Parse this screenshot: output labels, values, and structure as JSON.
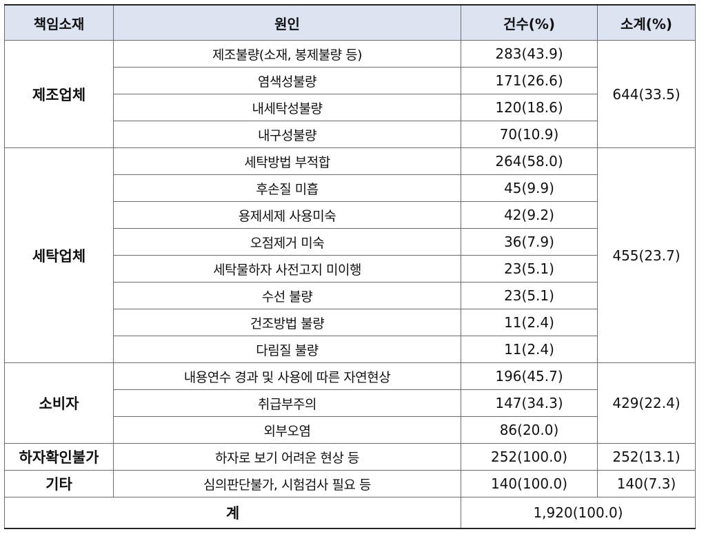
{
  "headers": [
    "책임소재",
    "원인",
    "건수(%)",
    "소계(%)"
  ],
  "groups": [
    {
      "category": "제조업체",
      "subtotal": "644(33.5)",
      "rows": [
        {
          "cause": "제조불량(소재, 봉제불량 등)",
          "count": "283(43.9)"
        },
        {
          "cause": "염색성불량",
          "count": "171(26.6)"
        },
        {
          "cause": "내세탁성불량",
          "count": "120(18.6)"
        },
        {
          "cause": "내구성불량",
          "count": "70(10.9)"
        }
      ]
    },
    {
      "category": "세탁업체",
      "subtotal": "455(23.7)",
      "rows": [
        {
          "cause": "세탁방법 부적합",
          "count": "264(58.0)"
        },
        {
          "cause": "후손질 미흡",
          "count": "45(9.9)"
        },
        {
          "cause": "용제세제 사용미숙",
          "count": "42(9.2)"
        },
        {
          "cause": "오점제거 미숙",
          "count": "36(7.9)"
        },
        {
          "cause": "세탁물하자 사전고지 미이행",
          "count": "23(5.1)"
        },
        {
          "cause": "수선 불량",
          "count": "23(5.1)"
        },
        {
          "cause": "건조방법 불량",
          "count": "11(2.4)"
        },
        {
          "cause": "다림질 불량",
          "count": "11(2.4)"
        }
      ]
    },
    {
      "category": "소비자",
      "subtotal": "429(22.4)",
      "rows": [
        {
          "cause": "내용연수 경과 및 사용에 따른 자연현상",
          "count": "196(45.7)"
        },
        {
          "cause": "취급부주의",
          "count": "147(34.3)"
        },
        {
          "cause": "외부오염",
          "count": "86(20.0)"
        }
      ]
    },
    {
      "category": "하자확인불가",
      "subtotal": "252(13.1)",
      "rows": [
        {
          "cause": "하자로 보기 어려운 현상 등",
          "count": "252(100.0)"
        }
      ]
    },
    {
      "category": "기타",
      "subtotal": "140(7.3)",
      "rows": [
        {
          "cause": "심의판단불가, 시험검사 필요 등",
          "count": "140(100.0)"
        }
      ]
    }
  ],
  "total": {
    "label": "계",
    "value": "1,920(100.0)"
  }
}
